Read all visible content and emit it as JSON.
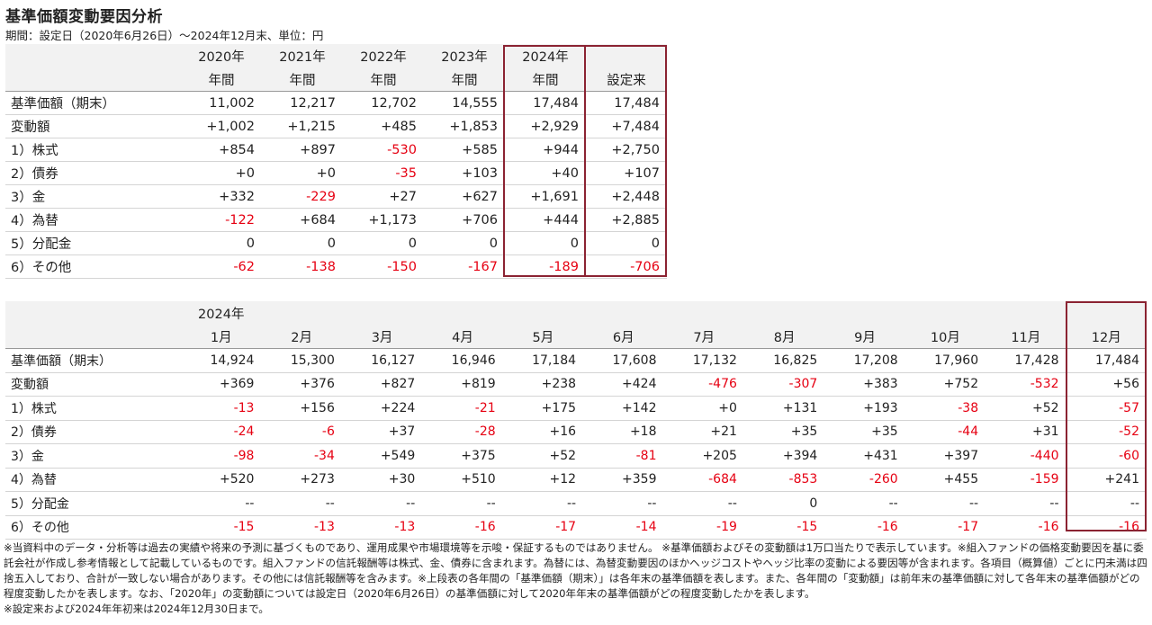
{
  "title": "基準価額変動要因分析",
  "subtitle": "期間：設定日（2020年6月26日）～2024年12月末、単位：円",
  "table1": {
    "headers": [
      {
        "top": "2020年",
        "bottom": "年間"
      },
      {
        "top": "2021年",
        "bottom": "年間"
      },
      {
        "top": "2022年",
        "bottom": "年間"
      },
      {
        "top": "2023年",
        "bottom": "年間"
      },
      {
        "top": "2024年",
        "bottom": "年間"
      },
      {
        "top": "",
        "bottom": "設定来"
      }
    ],
    "rows": [
      {
        "label": "基準価額（期末）",
        "cells": [
          "11,002",
          "12,217",
          "12,702",
          "14,555",
          "17,484",
          "17,484"
        ]
      },
      {
        "label": "変動額",
        "cells": [
          "+1,002",
          "+1,215",
          "+485",
          "+1,853",
          "+2,929",
          "+7,484"
        ]
      },
      {
        "label": "1）株式",
        "cells": [
          "+854",
          "+897",
          "-530",
          "+585",
          "+944",
          "+2,750"
        ]
      },
      {
        "label": "2）債券",
        "cells": [
          "+0",
          "+0",
          "-35",
          "+103",
          "+40",
          "+107"
        ]
      },
      {
        "label": "3）金",
        "cells": [
          "+332",
          "-229",
          "+27",
          "+627",
          "+1,691",
          "+2,448"
        ]
      },
      {
        "label": "4）為替",
        "cells": [
          "-122",
          "+684",
          "+1,173",
          "+706",
          "+444",
          "+2,885"
        ]
      },
      {
        "label": "5）分配金",
        "cells": [
          "0",
          "0",
          "0",
          "0",
          "0",
          "0"
        ]
      },
      {
        "label": "6）その他",
        "cells": [
          "-62",
          "-138",
          "-150",
          "-167",
          "-189",
          "-706"
        ]
      }
    ]
  },
  "table2": {
    "year_label": "2024年",
    "months": [
      "1月",
      "2月",
      "3月",
      "4月",
      "5月",
      "6月",
      "7月",
      "8月",
      "9月",
      "10月",
      "11月",
      "12月"
    ],
    "rows": [
      {
        "label": "基準価額（期末）",
        "cells": [
          "14,924",
          "15,300",
          "16,127",
          "16,946",
          "17,184",
          "17,608",
          "17,132",
          "16,825",
          "17,208",
          "17,960",
          "17,428",
          "17,484"
        ]
      },
      {
        "label": "変動額",
        "cells": [
          "+369",
          "+376",
          "+827",
          "+819",
          "+238",
          "+424",
          "-476",
          "-307",
          "+383",
          "+752",
          "-532",
          "+56"
        ]
      },
      {
        "label": "1）株式",
        "cells": [
          "-13",
          "+156",
          "+224",
          "-21",
          "+175",
          "+142",
          "+0",
          "+131",
          "+193",
          "-38",
          "+52",
          "-57"
        ]
      },
      {
        "label": "2）債券",
        "cells": [
          "-24",
          "-6",
          "+37",
          "-28",
          "+16",
          "+18",
          "+21",
          "+35",
          "+35",
          "-44",
          "+31",
          "-52"
        ]
      },
      {
        "label": "3）金",
        "cells": [
          "-98",
          "-34",
          "+549",
          "+375",
          "+52",
          "-81",
          "+205",
          "+394",
          "+431",
          "+397",
          "-440",
          "-60"
        ]
      },
      {
        "label": "4）為替",
        "cells": [
          "+520",
          "+273",
          "+30",
          "+510",
          "+12",
          "+359",
          "-684",
          "-853",
          "-260",
          "+455",
          "-159",
          "+241"
        ]
      },
      {
        "label": "5）分配金",
        "cells": [
          "--",
          "--",
          "--",
          "--",
          "--",
          "--",
          "--",
          "0",
          "--",
          "--",
          "--",
          "--"
        ]
      },
      {
        "label": "6）その他",
        "cells": [
          "-15",
          "-13",
          "-13",
          "-16",
          "-17",
          "-14",
          "-19",
          "-15",
          "-16",
          "-17",
          "-16",
          "-16"
        ]
      }
    ]
  },
  "notes": [
    "※当資料中のデータ・分析等は過去の実績や将来の予測に基づくものであり、運用成果や市場環境等を示唆・保証するものではありません。 ※基準価額およびその変動額は1万口当たりで表示しています。※組入ファンドの価格変動要因を基に委託会社が作成し参考情報として記載しているものです。組入ファンドの信託報酬等は株式、金、債券に含まれます。為替には、為替変動要因のほかヘッジコストやヘッジ比率の変動による要因等が含まれます。各項目（概算値）ごとに円未満は四捨五入しており、合計が一致しない場合があります。その他には信託報酬等を含みます。※上段表の各年間の「基準価額（期末）」は各年末の基準価額を表します。また、各年間の「変動額」は前年末の基準価額に対して各年末の基準価額がどの程度変動したかを表します。なお、「2020年」の変動額については設定日（2020年6月26日）の基準価額に対して2020年年末の基準価額がどの程度変動したかを表します。",
    "※設定来および2024年年初来は2024年12月30日まで。"
  ],
  "colors": {
    "negative": "#e60012",
    "highlight_border": "#8b2332",
    "header_bg": "#f2f2f2"
  }
}
